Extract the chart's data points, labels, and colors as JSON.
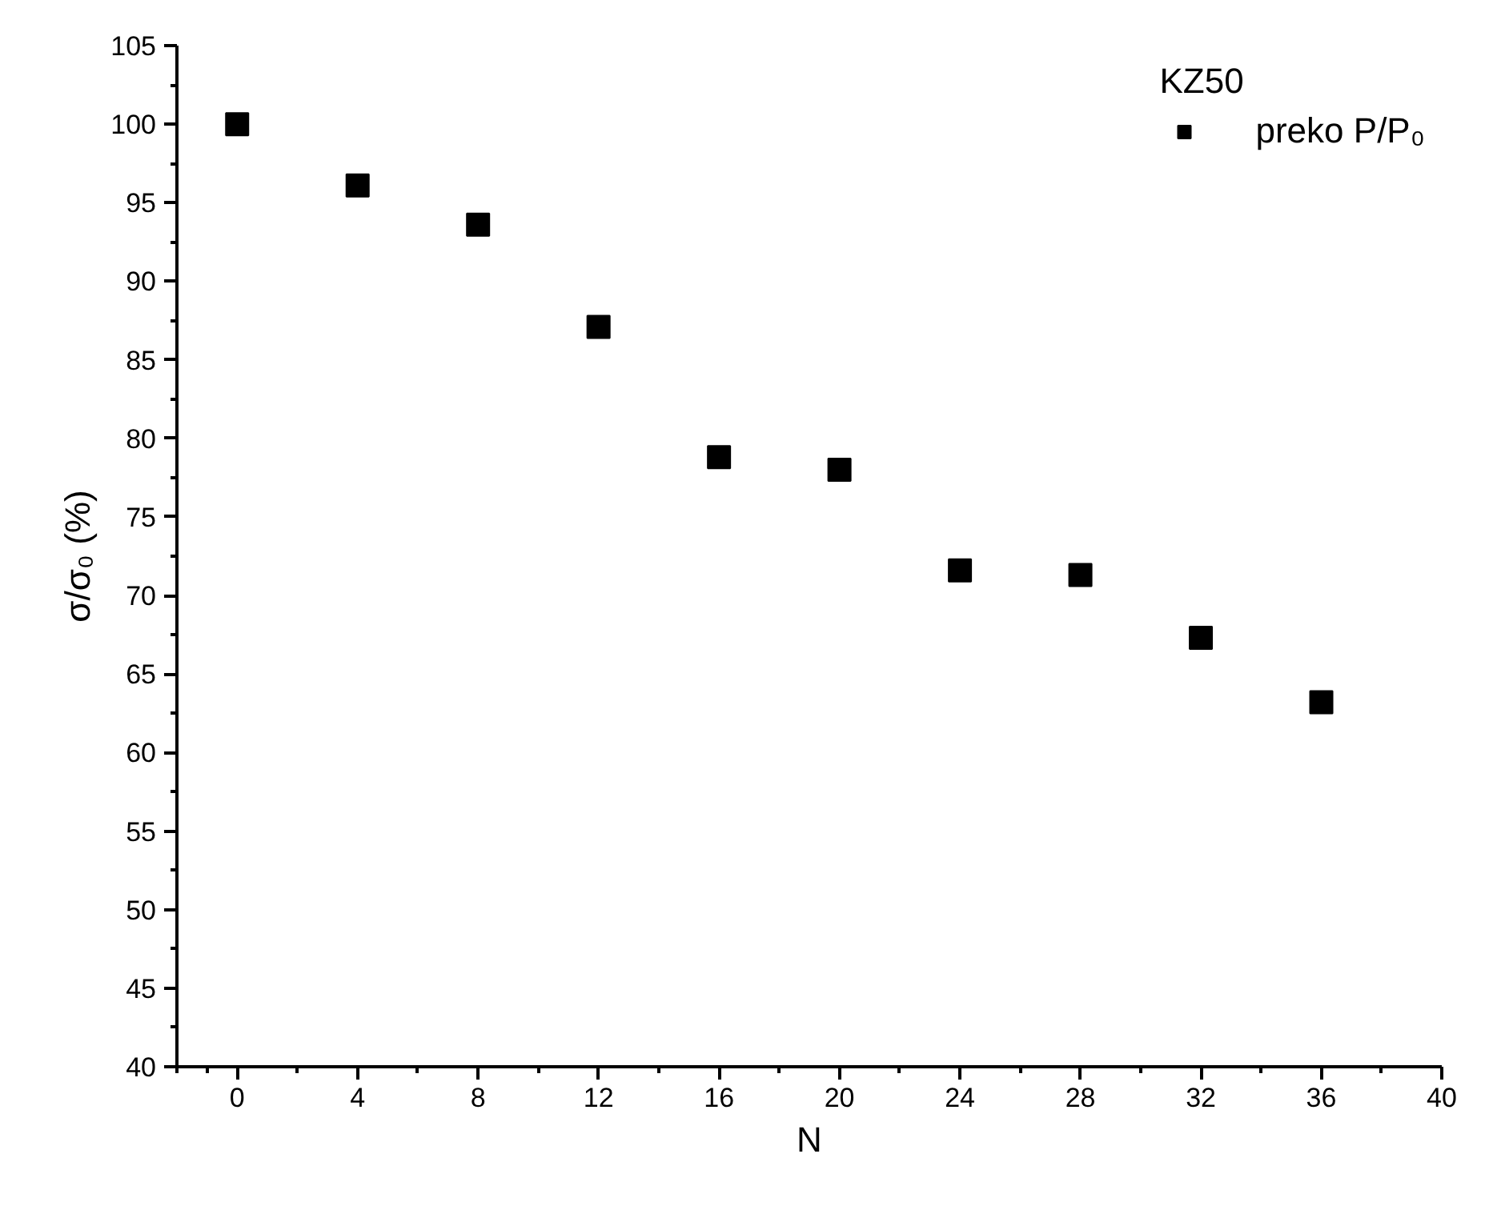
{
  "chart_data": {
    "type": "scatter",
    "xlabel": "N",
    "ylabel": "σ/σ₀ (%)",
    "legend_title": "KZ50",
    "x": [
      0,
      4,
      8,
      12,
      16,
      20,
      24,
      28,
      32,
      36
    ],
    "series": [
      {
        "name": "preko P/P₀",
        "color": "#000000",
        "values": [
          100.0,
          96.1,
          93.6,
          87.1,
          78.8,
          78.0,
          71.6,
          71.3,
          67.3,
          63.2
        ]
      }
    ],
    "xlim": [
      -2,
      40
    ],
    "xticks": [
      0,
      4,
      8,
      12,
      16,
      20,
      24,
      28,
      32,
      36,
      40
    ],
    "ylim": [
      40,
      105
    ],
    "yticks": [
      40,
      45,
      50,
      55,
      60,
      65,
      70,
      75,
      80,
      85,
      90,
      95,
      100,
      105
    ],
    "grid": false,
    "legend": "top right",
    "marker": "square"
  }
}
